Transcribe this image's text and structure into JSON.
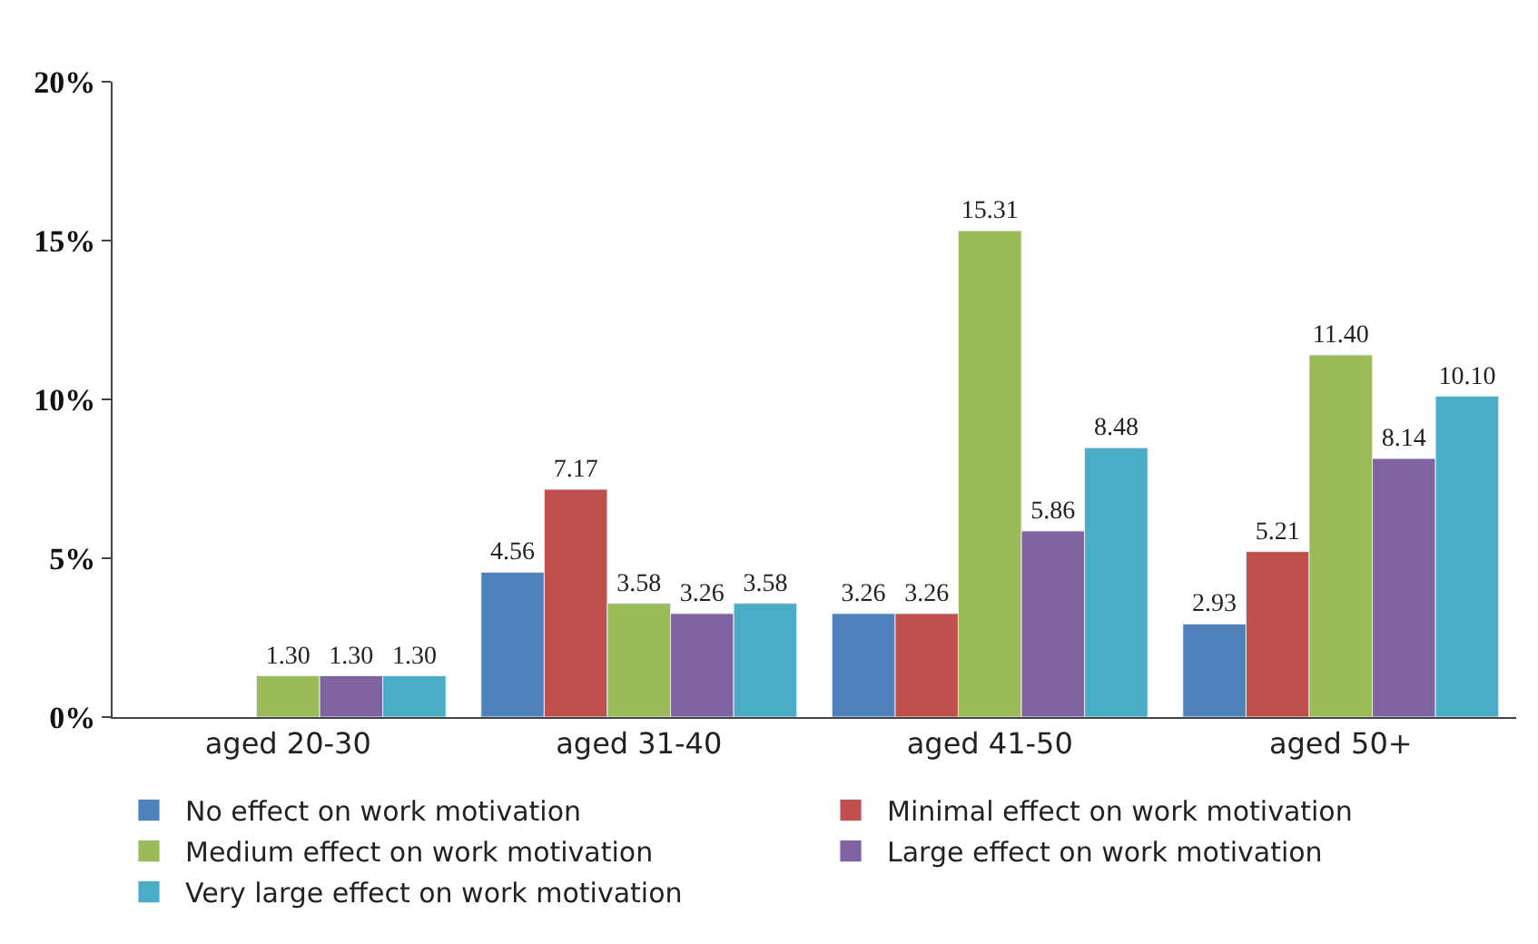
{
  "chart_data": {
    "type": "bar",
    "categories": [
      "aged 20-30",
      "aged 31-40",
      "aged 41-50",
      "aged 50+"
    ],
    "series": [
      {
        "name": "No effect on work motivation",
        "color": "#4f81bd",
        "values": [
          null,
          4.56,
          3.26,
          2.93
        ],
        "value_labels": [
          null,
          "4.56",
          "3.26",
          "2.93"
        ]
      },
      {
        "name": "Minimal effect on work motivation",
        "color": "#c0504d",
        "values": [
          null,
          7.17,
          3.26,
          5.21
        ],
        "value_labels": [
          null,
          "7.17",
          "3.26",
          "5.21"
        ]
      },
      {
        "name": "Medium effect on work motivation",
        "color": "#9bbb59",
        "values": [
          1.3,
          3.58,
          15.31,
          11.4
        ],
        "value_labels": [
          "1.30",
          "3.58",
          "15.31",
          "11.40"
        ]
      },
      {
        "name": "Large effect on work motivation",
        "color": "#8064a2",
        "values": [
          1.3,
          3.26,
          5.86,
          8.14
        ],
        "value_labels": [
          "1.30",
          "3.26",
          "5.86",
          "8.14"
        ]
      },
      {
        "name": "Very large effect on work motivation",
        "color": "#4bacc6",
        "values": [
          1.3,
          3.58,
          8.48,
          10.1
        ],
        "value_labels": [
          "1.30",
          "3.58",
          "8.48",
          "10.10"
        ]
      }
    ],
    "ylim": [
      0,
      20
    ],
    "yticks": [
      {
        "value": 0,
        "label": "0%"
      },
      {
        "value": 5,
        "label": "5%"
      },
      {
        "value": 10,
        "label": "10%"
      },
      {
        "value": 15,
        "label": "15%"
      },
      {
        "value": 20,
        "label": "20%"
      }
    ],
    "legend": "bottom"
  }
}
